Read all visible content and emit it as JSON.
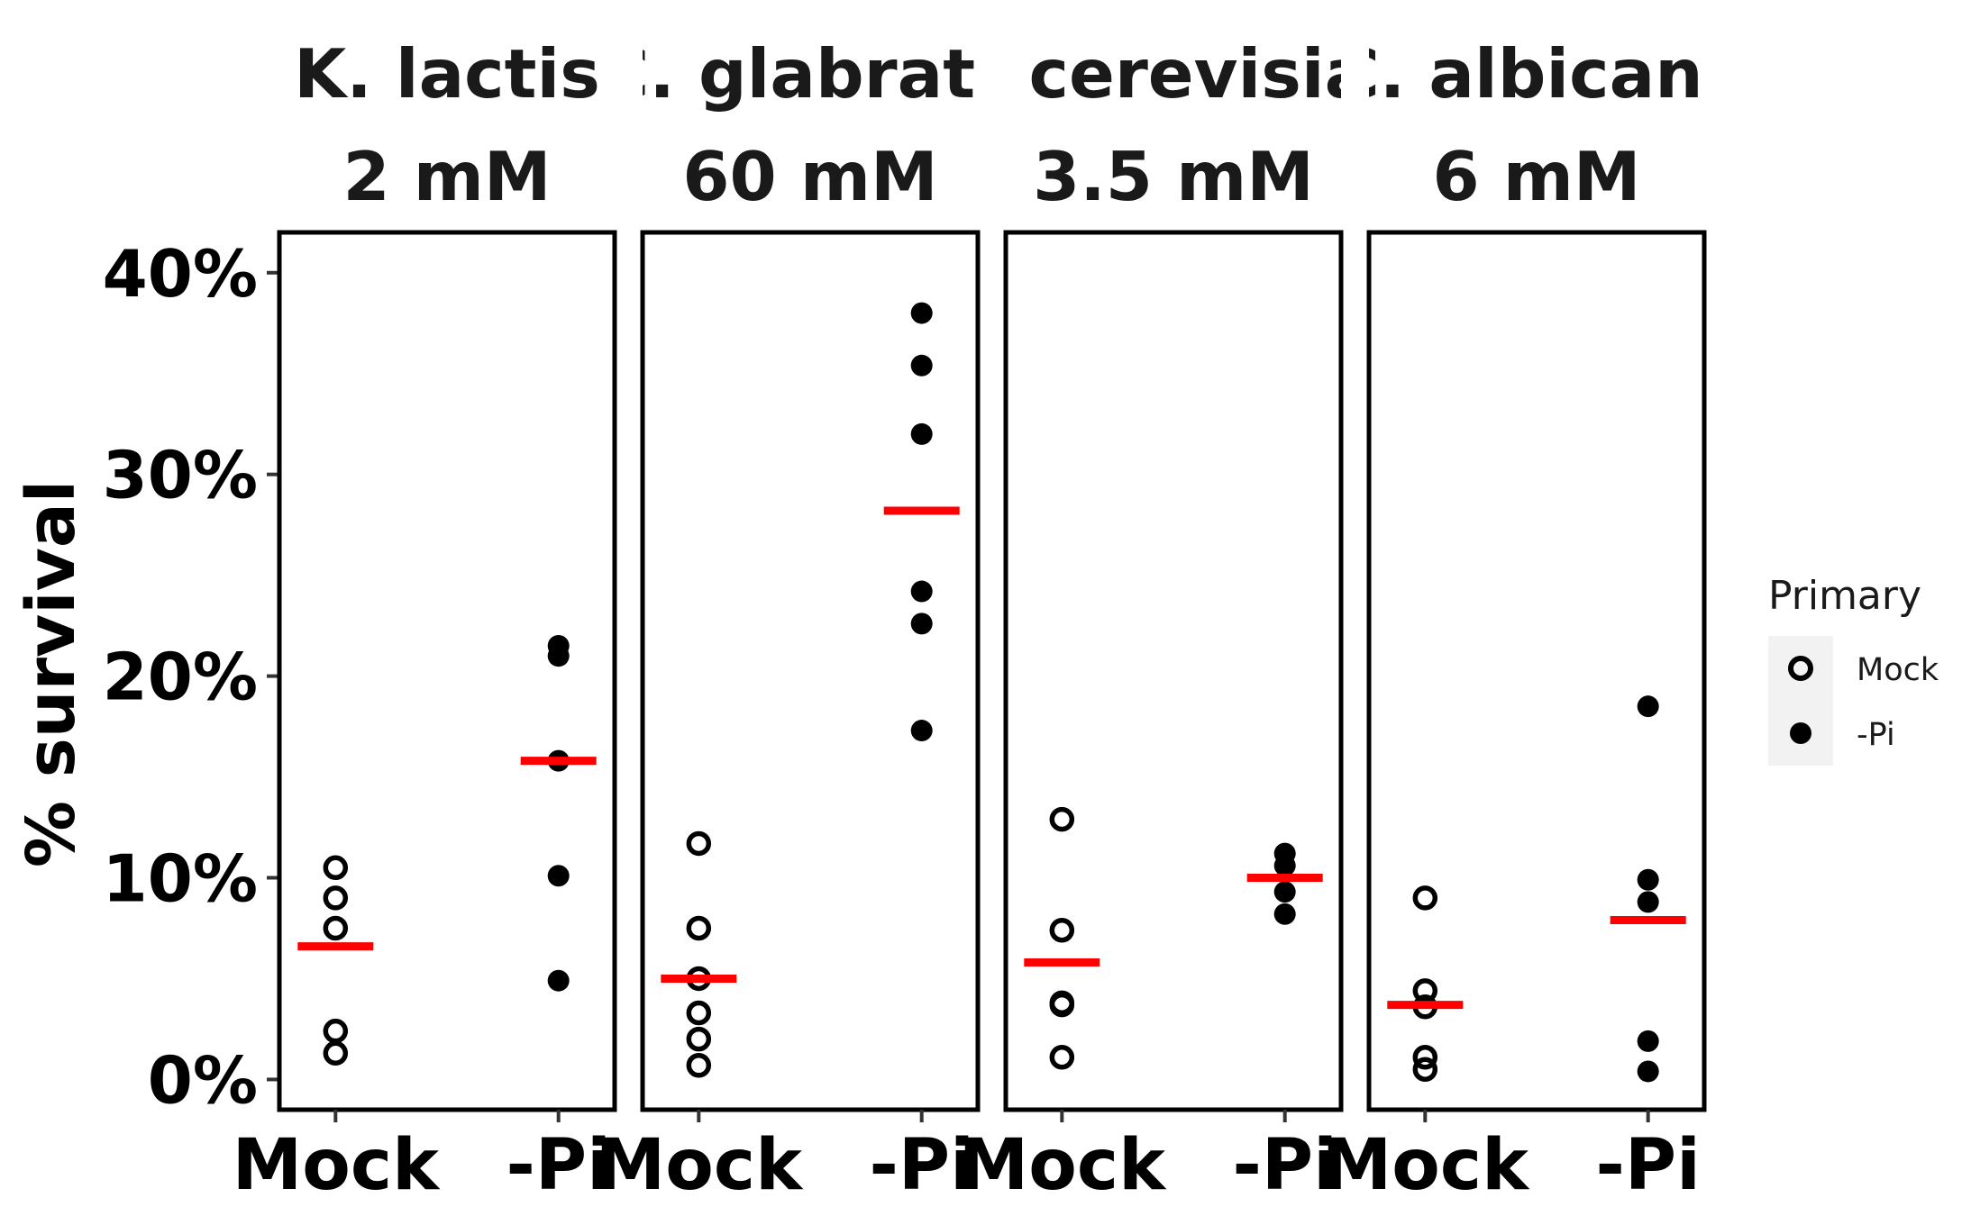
{
  "chart_data": {
    "type": "scatter",
    "ylabel": "% survival",
    "y_tick_labels": [
      "0%",
      "10%",
      "20%",
      "30%",
      "40%"
    ],
    "y_ticks": [
      0,
      10,
      20,
      30,
      40
    ],
    "ylim": [
      -1.5,
      42
    ],
    "categories": [
      "Mock",
      "-Pi"
    ],
    "grid": false,
    "legend": {
      "title": "Primary",
      "position": "right",
      "entries": [
        {
          "label": "Mock",
          "shape": "open-circle"
        },
        {
          "label": "-Pi",
          "shape": "filled-circle"
        }
      ]
    },
    "mean_bar_color": "#ff0000",
    "facets": [
      {
        "title_line1": "K. lactis",
        "title_line2": "2 mM",
        "series": [
          {
            "name": "Mock",
            "values": [
              10.5,
              9.0,
              7.5,
              2.4,
              1.3
            ],
            "mean": 6.6
          },
          {
            "name": "-Pi",
            "values": [
              21.5,
              21.0,
              15.8,
              10.1,
              4.9
            ],
            "mean": 15.8
          }
        ]
      },
      {
        "title_line1": "C. glabrata",
        "title_line2": "60 mM",
        "series": [
          {
            "name": "Mock",
            "values": [
              11.7,
              7.5,
              5.0,
              3.3,
              2.0,
              0.7
            ],
            "mean": 5.0
          },
          {
            "name": "-Pi",
            "values": [
              38.0,
              35.4,
              32.0,
              24.2,
              22.6,
              17.3
            ],
            "mean": 28.2
          }
        ]
      },
      {
        "title_line1": "S. cerevisiae",
        "title_line2": "3.5 mM",
        "series": [
          {
            "name": "Mock",
            "values": [
              12.9,
              7.4,
              3.8,
              3.7,
              1.1
            ],
            "mean": 5.8
          },
          {
            "name": "-Pi",
            "values": [
              11.2,
              10.6,
              9.3,
              8.2
            ],
            "mean": 10.0
          }
        ]
      },
      {
        "title_line1": "C. albicans",
        "title_line2": "6 mM",
        "series": [
          {
            "name": "Mock",
            "values": [
              9.0,
              4.4,
              3.6,
              1.1,
              0.5
            ],
            "mean": 3.7
          },
          {
            "name": "-Pi",
            "values": [
              18.5,
              9.9,
              8.8,
              1.9,
              0.4
            ],
            "mean": 7.9
          }
        ]
      }
    ]
  }
}
